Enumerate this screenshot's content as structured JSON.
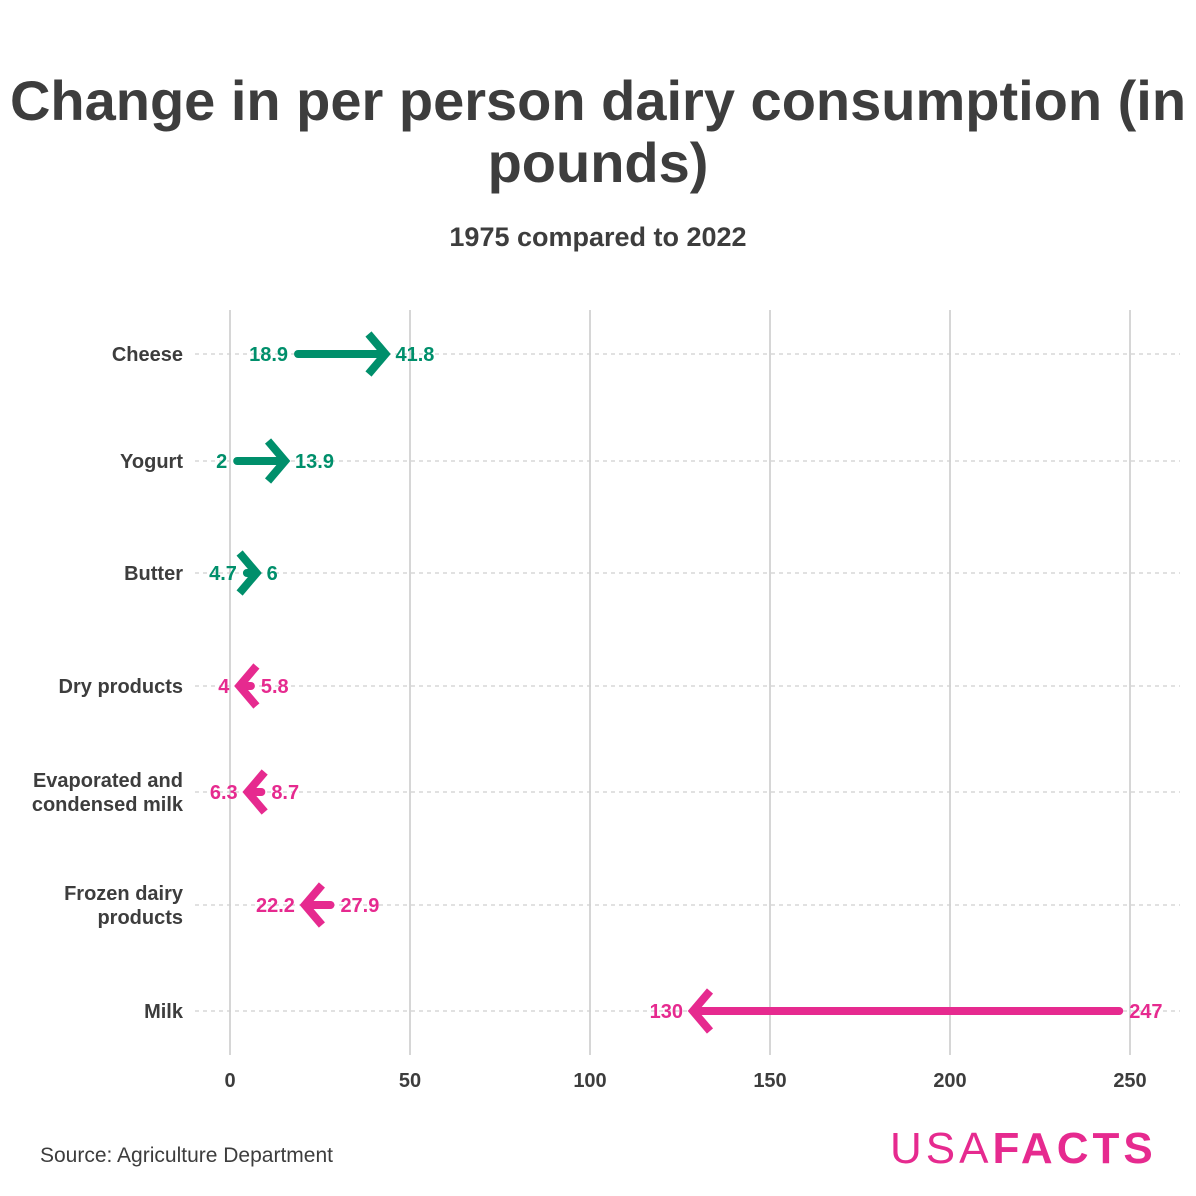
{
  "chart_data": {
    "type": "dumbbell-arrow",
    "title": "Change in per person dairy consumption (in pounds)",
    "subtitle": "1975 compared to 2022",
    "xlim": [
      0,
      250
    ],
    "xticks": [
      0,
      50,
      100,
      150,
      200,
      250
    ],
    "grid": true,
    "series": [
      {
        "category": "Cheese",
        "start": 18.9,
        "end": 41.8,
        "start_label": "18.9",
        "end_label": "41.8"
      },
      {
        "category": "Yogurt",
        "start": 2,
        "end": 13.9,
        "start_label": "2",
        "end_label": "13.9"
      },
      {
        "category": "Butter",
        "start": 4.7,
        "end": 6,
        "start_label": "4.7",
        "end_label": "6"
      },
      {
        "category": "Dry products",
        "start": 5.8,
        "end": 4,
        "start_label": "5.8",
        "end_label": "4"
      },
      {
        "category": "Evaporated and condensed milk",
        "lines": [
          "Evaporated and",
          "condensed milk"
        ],
        "start": 8.7,
        "end": 6.3,
        "start_label": "8.7",
        "end_label": "6.3"
      },
      {
        "category": "Frozen dairy products",
        "lines": [
          "Frozen dairy",
          "products"
        ],
        "start": 27.9,
        "end": 22.2,
        "start_label": "27.9",
        "end_label": "22.2"
      },
      {
        "category": "Milk",
        "start": 247,
        "end": 130,
        "start_label": "247",
        "end_label": "130"
      }
    ],
    "colors": {
      "increase": "#008f6b",
      "decrease": "#e62a8f"
    }
  },
  "footer": {
    "source": "Source: Agriculture Department",
    "logo_thin": "USA",
    "logo_bold": "FACTS"
  }
}
